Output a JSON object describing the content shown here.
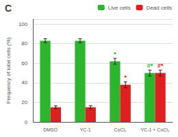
{
  "chart_data": {
    "type": "bar",
    "title": "C",
    "categories": [
      "DMSO",
      "YC-1",
      "CoCl₂",
      "YC-1 + CoCl₂"
    ],
    "series": [
      {
        "name": "Live cells",
        "color": "#2db52d",
        "values": [
          83,
          83,
          62,
          50
        ],
        "errors": [
          2,
          2,
          3,
          3
        ]
      },
      {
        "name": "Dead cells",
        "color": "#e02020",
        "values": [
          15,
          15,
          38,
          50
        ],
        "errors": [
          1.5,
          1.5,
          3,
          3
        ]
      }
    ],
    "ylabel": "Frequency of total cells (%)",
    "ylim": [
      0,
      105
    ],
    "yticks": [
      0,
      20,
      40,
      60,
      80,
      100
    ],
    "grid": true,
    "legend": "upper right",
    "annotations": [
      {
        "text": "*",
        "category": "CoCl₂",
        "series": "Live cells"
      },
      {
        "text": "*",
        "category": "CoCl₂",
        "series": "Dead cells"
      },
      {
        "text": "#*",
        "category": "YC-1 + CoCl₂",
        "series": "Live cells"
      },
      {
        "text": "#*",
        "category": "YC-1 + CoCl₂",
        "series": "Dead cells"
      }
    ]
  }
}
